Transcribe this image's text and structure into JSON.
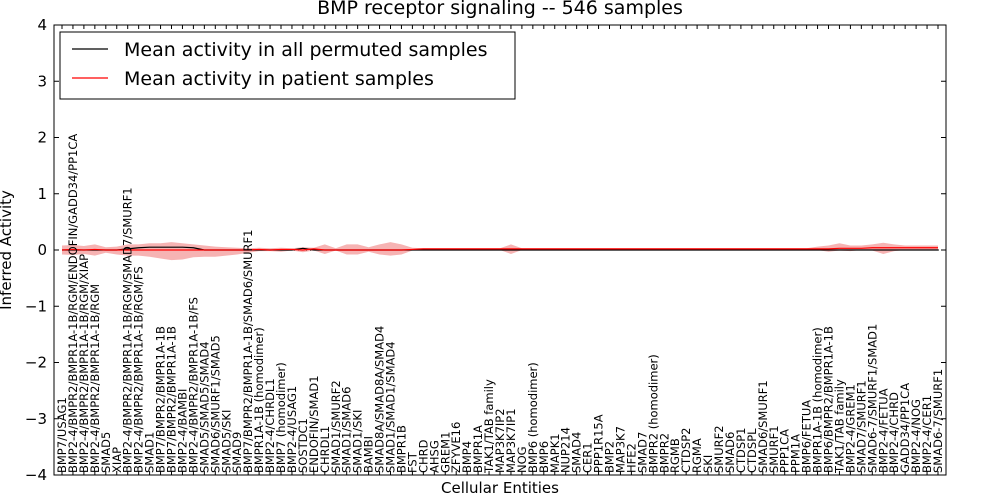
{
  "chart_data": {
    "type": "line",
    "title": "BMP receptor signaling -- 546 samples",
    "xlabel": "Cellular Entities",
    "ylabel": "Inferred Activity",
    "ylim": [
      -4,
      4
    ],
    "yticks": [
      -4,
      -3,
      -2,
      -1,
      0,
      1,
      2,
      3,
      4
    ],
    "grid": false,
    "legend_position": "top-left",
    "categories": [
      "BMP7/USAG1",
      "BMP2-4/BMPR2/BMPR1A-1B/RGM/ENDOFIN/GADD34/PP1CA",
      "BMP2-4/BMPR2/BMPR1A-1B/RGM/XIAP",
      "BMP2-4/BMPR2/BMPR1A-1B/RGM",
      "SMAD5",
      "XIAP",
      "BMP2-4/BMPR2/BMPR1A-1B/RGM/SMAD7/SMURF1",
      "BMP2-4/BMPR2/BMPR1A-1B/RGM/FS",
      "SMAD1",
      "BMP7/BMPR2/BMPR1A-1B",
      "BMP7/BMPR2/BMPR1A-1B",
      "BMP2-4/BAMBI",
      "BMP2-4/BMPR2/BMPR1A-1B/FS",
      "SMAD5/SMAD5/SMAD4",
      "SMAD6/SMURF1/SMAD5",
      "SMAD5/SKI",
      "SMAD9",
      "BMP7/BMPR2/BMPR1A-1B/SMAD6/SMURF1",
      "BMPR1A-1B (homodimer)",
      "BMP2-4/CHRDL1",
      "BMP7 (homodimer)",
      "BMP2-4/USAG1",
      "SOSTDC1",
      "ENDOFIN/SMAD1",
      "CHRDL1",
      "SMAD1/SMURF2",
      "SMAD1/SMAD6",
      "SMAD1/SKI",
      "BAMBI",
      "SMAD8A/SMAD8A/SMAD4",
      "SMAD1/SMAD1/SMAD4",
      "BMPR1B",
      "FST",
      "CHRD",
      "AHSG",
      "GREM1",
      "ZFYVE16",
      "BMP4",
      "BMPR1A",
      "TAK1/TAB family",
      "MAP3K7IP2",
      "MAP3K7IP1",
      "NOG",
      "BMP6 (homodimer)",
      "BMP6",
      "MAPK1",
      "NUP214",
      "SMAD4",
      "CER1",
      "PPP1R15A",
      "BMP2",
      "MAP3K7",
      "HFE2",
      "SMAD7",
      "BMPR2 (homodimer)",
      "BMPR2",
      "RGMB",
      "CTDSP2",
      "RGMA",
      "SKI",
      "SMURF2",
      "SMAD6",
      "CTDSP1",
      "CTDSPL",
      "SMAD6/SMURF1",
      "SMURF1",
      "PPP1CA",
      "PPM1A",
      "BMP6/FETUA",
      "BMPR1A-1B (homodimer)",
      "BMP6/BMPR2/BMPR1A-1B",
      "TAK1/TAB family",
      "BMP2-4/GREM1",
      "SMAD7/SMURF1",
      "SMAD6-7/SMURF1/SMAD1",
      "BMP2-4/FETUA",
      "BMP2-4/CHRD",
      "GADD34/PP1CA",
      "BMP2-4/NOG",
      "BMP2-4/CER1",
      "SMAD6-7/SMURF1"
    ],
    "series": [
      {
        "name": "Mean activity in all permuted samples",
        "color": "#000000",
        "values": [
          0.0,
          0.0,
          0.0,
          0.0,
          0.0,
          0.0,
          0.02,
          0.04,
          0.05,
          0.05,
          0.05,
          0.05,
          0.04,
          0.0,
          0.0,
          0.0,
          0.0,
          0.0,
          0.0,
          0.0,
          0.0,
          0.0,
          0.03,
          0.0,
          0.0,
          0.0,
          0.0,
          0.0,
          0.0,
          0.0,
          0.0,
          0.0,
          0.0,
          0.0,
          0.0,
          0.0,
          0.0,
          0.0,
          0.0,
          0.0,
          0.0,
          0.0,
          0.0,
          0.0,
          0.0,
          0.0,
          0.0,
          0.0,
          0.0,
          0.0,
          0.0,
          0.0,
          0.0,
          0.0,
          0.0,
          0.0,
          0.0,
          0.0,
          0.0,
          0.0,
          0.0,
          0.0,
          0.0,
          0.0,
          0.0,
          0.0,
          0.0,
          0.0,
          0.0,
          0.0,
          0.0,
          0.0,
          0.0,
          0.0,
          0.0,
          0.0,
          0.0,
          0.0,
          0.0,
          0.0,
          0.0
        ]
      },
      {
        "name": "Mean activity in patient samples",
        "color": "#ff0000",
        "band_color": "#f4a6a6",
        "values": [
          0.0,
          0.01,
          0.0,
          0.01,
          0.0,
          0.0,
          0.0,
          0.0,
          0.0,
          0.0,
          0.0,
          0.0,
          0.0,
          0.0,
          0.0,
          0.0,
          0.0,
          0.0,
          0.01,
          0.0,
          0.01,
          0.01,
          0.0,
          0.02,
          0.0,
          0.0,
          0.0,
          0.0,
          0.0,
          0.0,
          0.0,
          0.0,
          0.01,
          0.02,
          0.02,
          0.02,
          0.02,
          0.02,
          0.02,
          0.02,
          0.02,
          0.02,
          0.02,
          0.02,
          0.02,
          0.02,
          0.02,
          0.02,
          0.02,
          0.02,
          0.02,
          0.02,
          0.02,
          0.02,
          0.02,
          0.02,
          0.02,
          0.02,
          0.02,
          0.02,
          0.02,
          0.02,
          0.02,
          0.02,
          0.02,
          0.02,
          0.02,
          0.02,
          0.02,
          0.02,
          0.02,
          0.03,
          0.03,
          0.03,
          0.04,
          0.04,
          0.04,
          0.04,
          0.04,
          0.04,
          0.04
        ],
        "lower": [
          -0.08,
          -0.09,
          -0.07,
          -0.1,
          -0.05,
          -0.08,
          -0.1,
          -0.1,
          -0.12,
          -0.15,
          -0.18,
          -0.17,
          -0.13,
          -0.12,
          -0.12,
          -0.1,
          -0.08,
          -0.05,
          -0.02,
          -0.02,
          -0.03,
          -0.01,
          -0.04,
          -0.01,
          -0.07,
          -0.01,
          -0.08,
          -0.08,
          -0.03,
          -0.08,
          -0.1,
          -0.08,
          -0.01,
          0.0,
          0.0,
          0.0,
          0.0,
          0.0,
          0.0,
          0.0,
          0.0,
          -0.07,
          0.0,
          0.0,
          0.0,
          0.0,
          0.0,
          0.0,
          0.0,
          0.0,
          0.0,
          0.0,
          0.0,
          0.0,
          0.0,
          0.0,
          0.0,
          0.0,
          0.0,
          0.0,
          0.0,
          0.0,
          0.0,
          0.0,
          0.0,
          0.0,
          0.0,
          0.0,
          0.0,
          0.0,
          -0.03,
          -0.01,
          -0.02,
          0.0,
          -0.01,
          -0.07,
          -0.02,
          0.0,
          0.0,
          0.0,
          0.0
        ],
        "upper": [
          0.08,
          0.09,
          0.07,
          0.1,
          0.05,
          0.06,
          0.1,
          0.1,
          0.12,
          0.12,
          0.14,
          0.12,
          0.1,
          0.08,
          0.06,
          0.05,
          0.04,
          0.03,
          0.04,
          0.03,
          0.04,
          0.03,
          0.05,
          0.04,
          0.1,
          0.03,
          0.1,
          0.1,
          0.05,
          0.1,
          0.14,
          0.1,
          0.04,
          0.03,
          0.03,
          0.03,
          0.03,
          0.03,
          0.03,
          0.03,
          0.03,
          0.1,
          0.03,
          0.03,
          0.03,
          0.03,
          0.03,
          0.03,
          0.03,
          0.03,
          0.03,
          0.03,
          0.03,
          0.03,
          0.03,
          0.03,
          0.03,
          0.03,
          0.03,
          0.03,
          0.03,
          0.03,
          0.03,
          0.03,
          0.03,
          0.03,
          0.03,
          0.03,
          0.03,
          0.06,
          0.08,
          0.12,
          0.08,
          0.08,
          0.1,
          0.13,
          0.1,
          0.08,
          0.08,
          0.08,
          0.08
        ]
      }
    ]
  }
}
